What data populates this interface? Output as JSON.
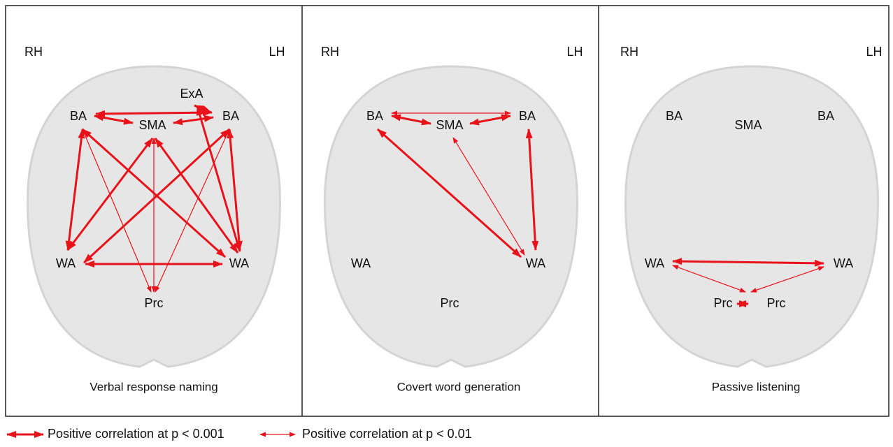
{
  "panels": [
    {
      "hemispheres": {
        "right": "RH",
        "left": "LH"
      },
      "nodes": [
        "ExA",
        "BA",
        "SMA",
        "BA",
        "WA",
        "WA",
        "Prc"
      ],
      "caption": "Verbal response naming"
    },
    {
      "hemispheres": {
        "right": "RH",
        "left": "LH"
      },
      "nodes": [
        "BA",
        "SMA",
        "BA",
        "WA",
        "WA",
        "Prc"
      ],
      "caption": "Covert word generation"
    },
    {
      "hemispheres": {
        "right": "RH",
        "left": "LH"
      },
      "nodes": [
        "BA",
        "SMA",
        "BA",
        "WA",
        "WA",
        "Prc",
        "Prc"
      ],
      "caption": "Passive listening"
    }
  ],
  "legend": [
    "Positive correlation at p < 0.001",
    "Positive correlation at p < 0.01"
  ]
}
